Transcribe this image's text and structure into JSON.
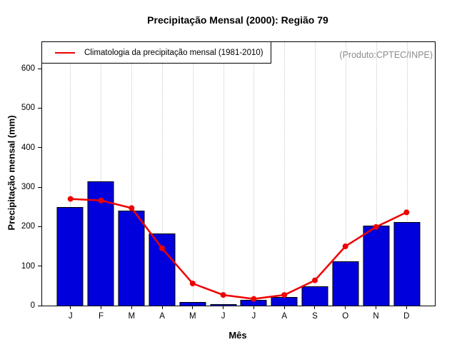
{
  "title": "Precipitação Mensal (2000): Região 79",
  "legend": {
    "label": "Climatologia da precipitação mensal (1981-2010)"
  },
  "watermark": "(Produto:CPTEC/INPE)",
  "colors": {
    "bar_fill": "#0000dc",
    "bar_border": "#000000",
    "climatology_line": "#ee0000",
    "grid": "#c9c9c9",
    "watermark_text": "#8c8c8c",
    "frame": "#000000",
    "background": "#ffffff"
  },
  "chart_data": {
    "type": "bar",
    "title": "Precipitação Mensal (2000): Região 79",
    "xlabel": "Mês",
    "ylabel": "Precipitação mensal (mm)",
    "categories": [
      "J",
      "F",
      "M",
      "A",
      "M",
      "J",
      "J",
      "A",
      "S",
      "O",
      "N",
      "D"
    ],
    "series": [
      {
        "name": "Precipitação mensal (2000)",
        "type": "bar",
        "values": [
          250,
          315,
          240,
          182,
          9,
          4,
          14,
          21,
          49,
          113,
          203,
          211
        ]
      },
      {
        "name": "Climatologia da precipitação mensal (1981-2010)",
        "type": "line",
        "values": [
          270,
          266,
          247,
          145,
          56,
          27,
          17,
          27,
          64,
          150,
          199,
          236
        ]
      }
    ],
    "ylim": [
      0,
      667
    ],
    "yticks": [
      0,
      100,
      200,
      300,
      400,
      500,
      600
    ],
    "grid": "vertical-dotted",
    "legend_position": "top-left",
    "annotation": "(Produto:CPTEC/INPE)"
  }
}
